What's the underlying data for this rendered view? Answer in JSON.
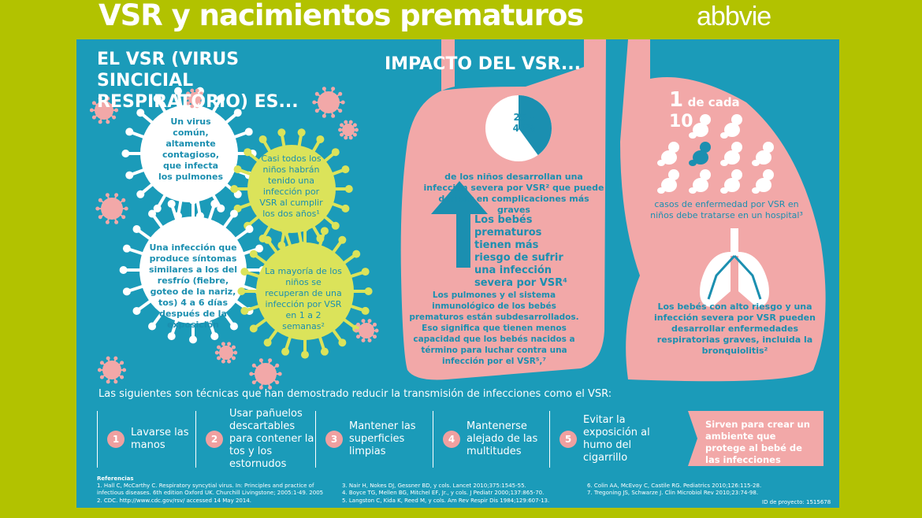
{
  "header": {
    "title": "VSR y nacimientos prematuros",
    "logo": "abbvie"
  },
  "left": {
    "heading": "EL VSR (VIRUS SINCICIAL RESPIRATORIO) ES...",
    "facts": [
      "Un virus común, altamente contagioso, que infecta los pulmones",
      "Casi todos los niños habrán tenido una infección por VSR al cumplir los dos años¹",
      "Una infección que produce síntomas similares a los del resfrío (fiebre, goteo de la nariz, tos) 4 a 6 días después de la exposición",
      "La mayoría de los niños se recuperan de una infección por VSR en 1 a 2 semanas²"
    ]
  },
  "impact": {
    "heading": "IMPACTO DEL VSR...",
    "pie_label": "25 – 40%",
    "pie_fraction": 0.4,
    "pie_text": "de los niños desarrollan una infección severa por VSR² que puede derivar en complicaciones más graves",
    "risk_text": "Los bebés prematuros tienen más riesgo de sufrir una infección severa por VSR⁴",
    "immune_text": "Los pulmones y el sistema inmunológico de los bebés prematuros están subdesarrollados. Eso significa que tienen menos capacidad que los bebés nacidos a término para luchar contra una infección por el VSR⁵,⁷",
    "ratio_one": "1",
    "ratio_de_cada": "de cada",
    "ratio_ten": "10",
    "hospital_text": "casos de enfermedad por VSR en niños debe tratarse en un hospital³",
    "bronchiolitis_text": "Los bebés con alto riesgo y una infección severa por VSR pueden desarrollar enfermedades respiratorias graves, incluida la bronquiolitis²"
  },
  "techniques": {
    "intro": "Las siguientes son técnicas que han demostrado reducir la transmisión de infecciones como el VSR:",
    "steps": [
      {
        "n": "1",
        "label": "Lavarse las manos"
      },
      {
        "n": "2",
        "label": "Usar pañuelos descartables para contener la tos y los estornudos"
      },
      {
        "n": "3",
        "label": "Mantener las superficies limpias"
      },
      {
        "n": "4",
        "label": "Mantenerse alejado de las multitudes"
      },
      {
        "n": "5",
        "label": "Evitar la exposición al humo del cigarrillo"
      }
    ],
    "summary": "Sirven para crear un ambiente que protege al bebé de las infecciones"
  },
  "references": {
    "title": "Referencias",
    "items": [
      "1. Hall C, McCarthy C. Respiratory syncytial virus. In: Principles and practice of infectious diseases. 6th edition Oxford UK. Churchill Livingstone; 2005:1-49. 2005",
      "2. CDC. http://www.cdc.gov/rsv/ accessed 14 May 2014.",
      "3. Nair H, Nokes DJ, Gessner BD, y cols. Lancet 2010;375:1545-55.",
      "4. Boyce TG, Mellen BG, Mitchel EF, Jr., y cols. J Pediatr 2000;137:865-70.",
      "5. Langston C, Kida K, Reed M, y cols. Am Rev Respir Dis 1984;129:607-13.",
      "6. Colin AA, McEvoy C, Castile RG. Pediatrics 2010;126:115-28.",
      "7. Tregoning JS, Schwarze J. Clin Microbiol Rev 2010;23:74-98."
    ],
    "project_id": "ID de proyecto: 1515678"
  },
  "colors": {
    "lime": "#b2c200",
    "blue": "#1b9bb9",
    "pink": "#f2a8a8",
    "yellow": "#dbe35a"
  }
}
